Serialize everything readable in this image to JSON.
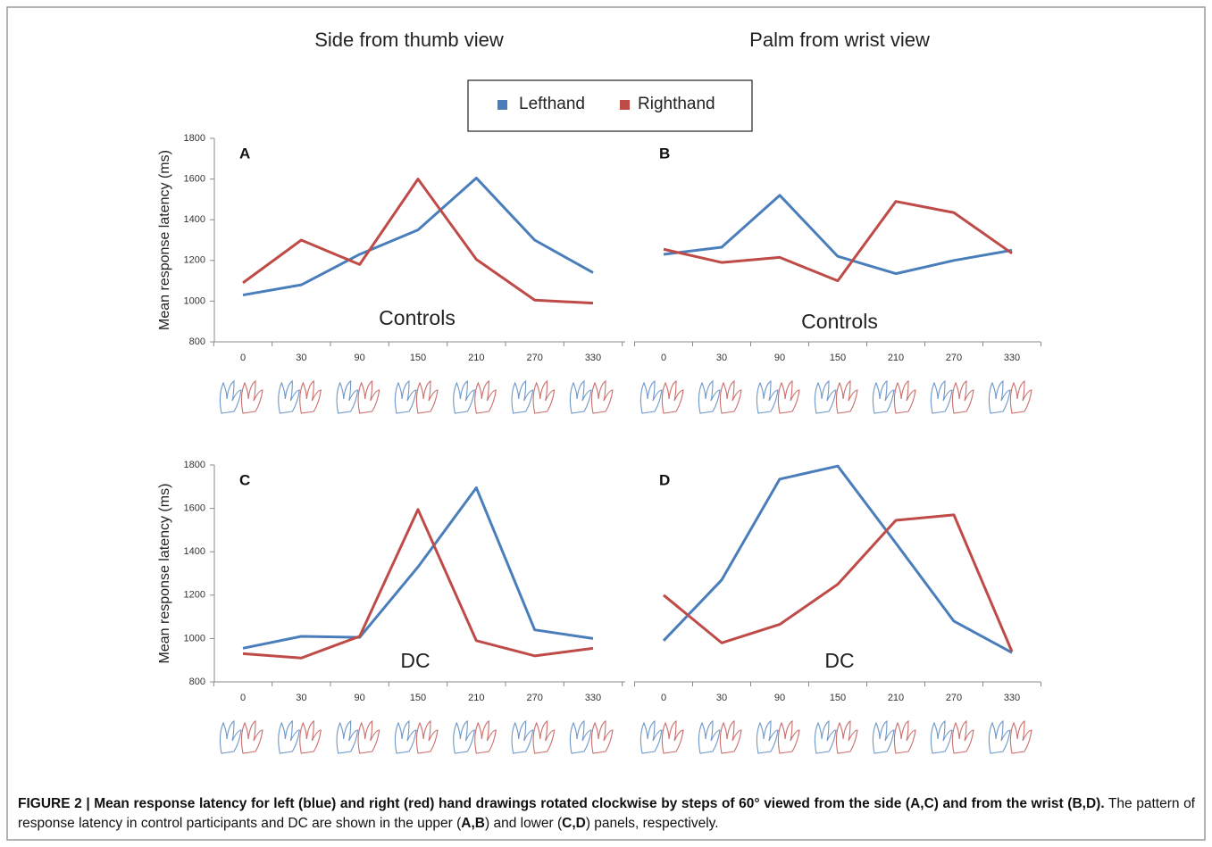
{
  "column_titles": [
    "Side from thumb view",
    "Palm from wrist view"
  ],
  "caption": [
    {
      "text": "FIGURE 2 | Mean response latency for left (blue) and right (red) hand drawings rotated clockwise by steps of 60° viewed from the side (A,C) and from the wrist (B,D).",
      "bold": true
    },
    {
      "text": " The pattern of response latency in control participants and DC are shown in the upper (",
      "bold": false
    },
    {
      "text": "A,B",
      "bold": true
    },
    {
      "text": ") and lower (",
      "bold": false
    },
    {
      "text": "C,D",
      "bold": true
    },
    {
      "text": ") panels, respectively.",
      "bold": false
    }
  ],
  "chart_data": [
    {
      "type": "line",
      "label": "A",
      "annotation": "Controls",
      "ylabel": "Mean response latency (ms)",
      "categories": [
        "0",
        "30",
        "90",
        "150",
        "210",
        "270",
        "330"
      ],
      "series": [
        {
          "name": "Lefthand",
          "color": "#4a7ebb",
          "values": [
            1030,
            1080,
            1230,
            1350,
            1605,
            1300,
            1140
          ]
        },
        {
          "name": "Righthand",
          "color": "#be4b48",
          "values": [
            1090,
            1300,
            1180,
            1600,
            1205,
            1005,
            990
          ]
        }
      ],
      "ylim": [
        800,
        1800
      ],
      "yticks": [
        800,
        1000,
        1200,
        1400,
        1600,
        1800
      ]
    },
    {
      "type": "line",
      "label": "B",
      "annotation": "Controls",
      "categories": [
        "0",
        "30",
        "90",
        "150",
        "210",
        "270",
        "330"
      ],
      "series": [
        {
          "name": "Lefthand",
          "color": "#4a7ebb",
          "values": [
            1230,
            1265,
            1520,
            1220,
            1135,
            1200,
            1250
          ]
        },
        {
          "name": "Righthand",
          "color": "#be4b48",
          "values": [
            1255,
            1190,
            1215,
            1100,
            1490,
            1435,
            1235
          ]
        }
      ],
      "ylim": [
        800,
        1800
      ]
    },
    {
      "type": "line",
      "label": "C",
      "annotation": "DC",
      "ylabel": "Mean response latency (ms)",
      "categories": [
        "0",
        "30",
        "90",
        "150",
        "210",
        "270",
        "330"
      ],
      "series": [
        {
          "name": "Lefthand",
          "color": "#4a7ebb",
          "values": [
            955,
            1010,
            1005,
            1330,
            1695,
            1040,
            1000
          ]
        },
        {
          "name": "Righthand",
          "color": "#be4b48",
          "values": [
            930,
            910,
            1010,
            1595,
            990,
            920,
            955
          ]
        }
      ],
      "ylim": [
        800,
        1800
      ],
      "yticks": [
        800,
        1000,
        1200,
        1400,
        1600,
        1800
      ]
    },
    {
      "type": "line",
      "label": "D",
      "annotation": "DC",
      "categories": [
        "0",
        "30",
        "90",
        "150",
        "210",
        "270",
        "330"
      ],
      "series": [
        {
          "name": "Lefthand",
          "color": "#4a7ebb",
          "values": [
            990,
            1270,
            1735,
            1795,
            1440,
            1080,
            935
          ]
        },
        {
          "name": "Righthand",
          "color": "#be4b48",
          "values": [
            1200,
            980,
            1065,
            1250,
            1545,
            1570,
            940
          ]
        }
      ],
      "ylim": [
        800,
        1800
      ]
    }
  ]
}
